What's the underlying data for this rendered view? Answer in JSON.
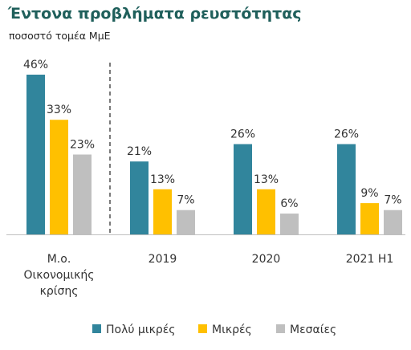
{
  "title": "Έντονα προβλήματα ρευστότητας",
  "subtitle": "ποσοστό τομέα ΜμΕ",
  "chart_data": {
    "type": "bar",
    "title": "Έντονα προβλήματα ρευστότητας",
    "subtitle": "ποσοστό τομέα ΜμΕ",
    "categories": [
      [
        "Μ.ο.",
        "Οικονομικής",
        "κρίσης"
      ],
      [
        "2019"
      ],
      [
        "2020"
      ],
      [
        "2021 H1"
      ]
    ],
    "series": [
      {
        "name": "Πολύ μικρές",
        "color": "#31859c",
        "values": [
          46,
          21,
          26,
          26
        ],
        "labels": [
          "46%",
          "21%",
          "26%",
          "26%"
        ]
      },
      {
        "name": "Μικρές",
        "color": "#ffc000",
        "values": [
          33,
          13,
          13,
          9
        ],
        "labels": [
          "33%",
          "13%",
          "13%",
          "9%"
        ]
      },
      {
        "name": "Μεσαίες",
        "color": "#bfbfbf",
        "values": [
          23,
          7,
          6,
          7
        ],
        "labels": [
          "23%",
          "7%",
          "6%",
          "7%"
        ]
      }
    ],
    "ylim": [
      0,
      46
    ],
    "grid": false,
    "separator_after_category": 0,
    "legend_position": "bottom"
  }
}
